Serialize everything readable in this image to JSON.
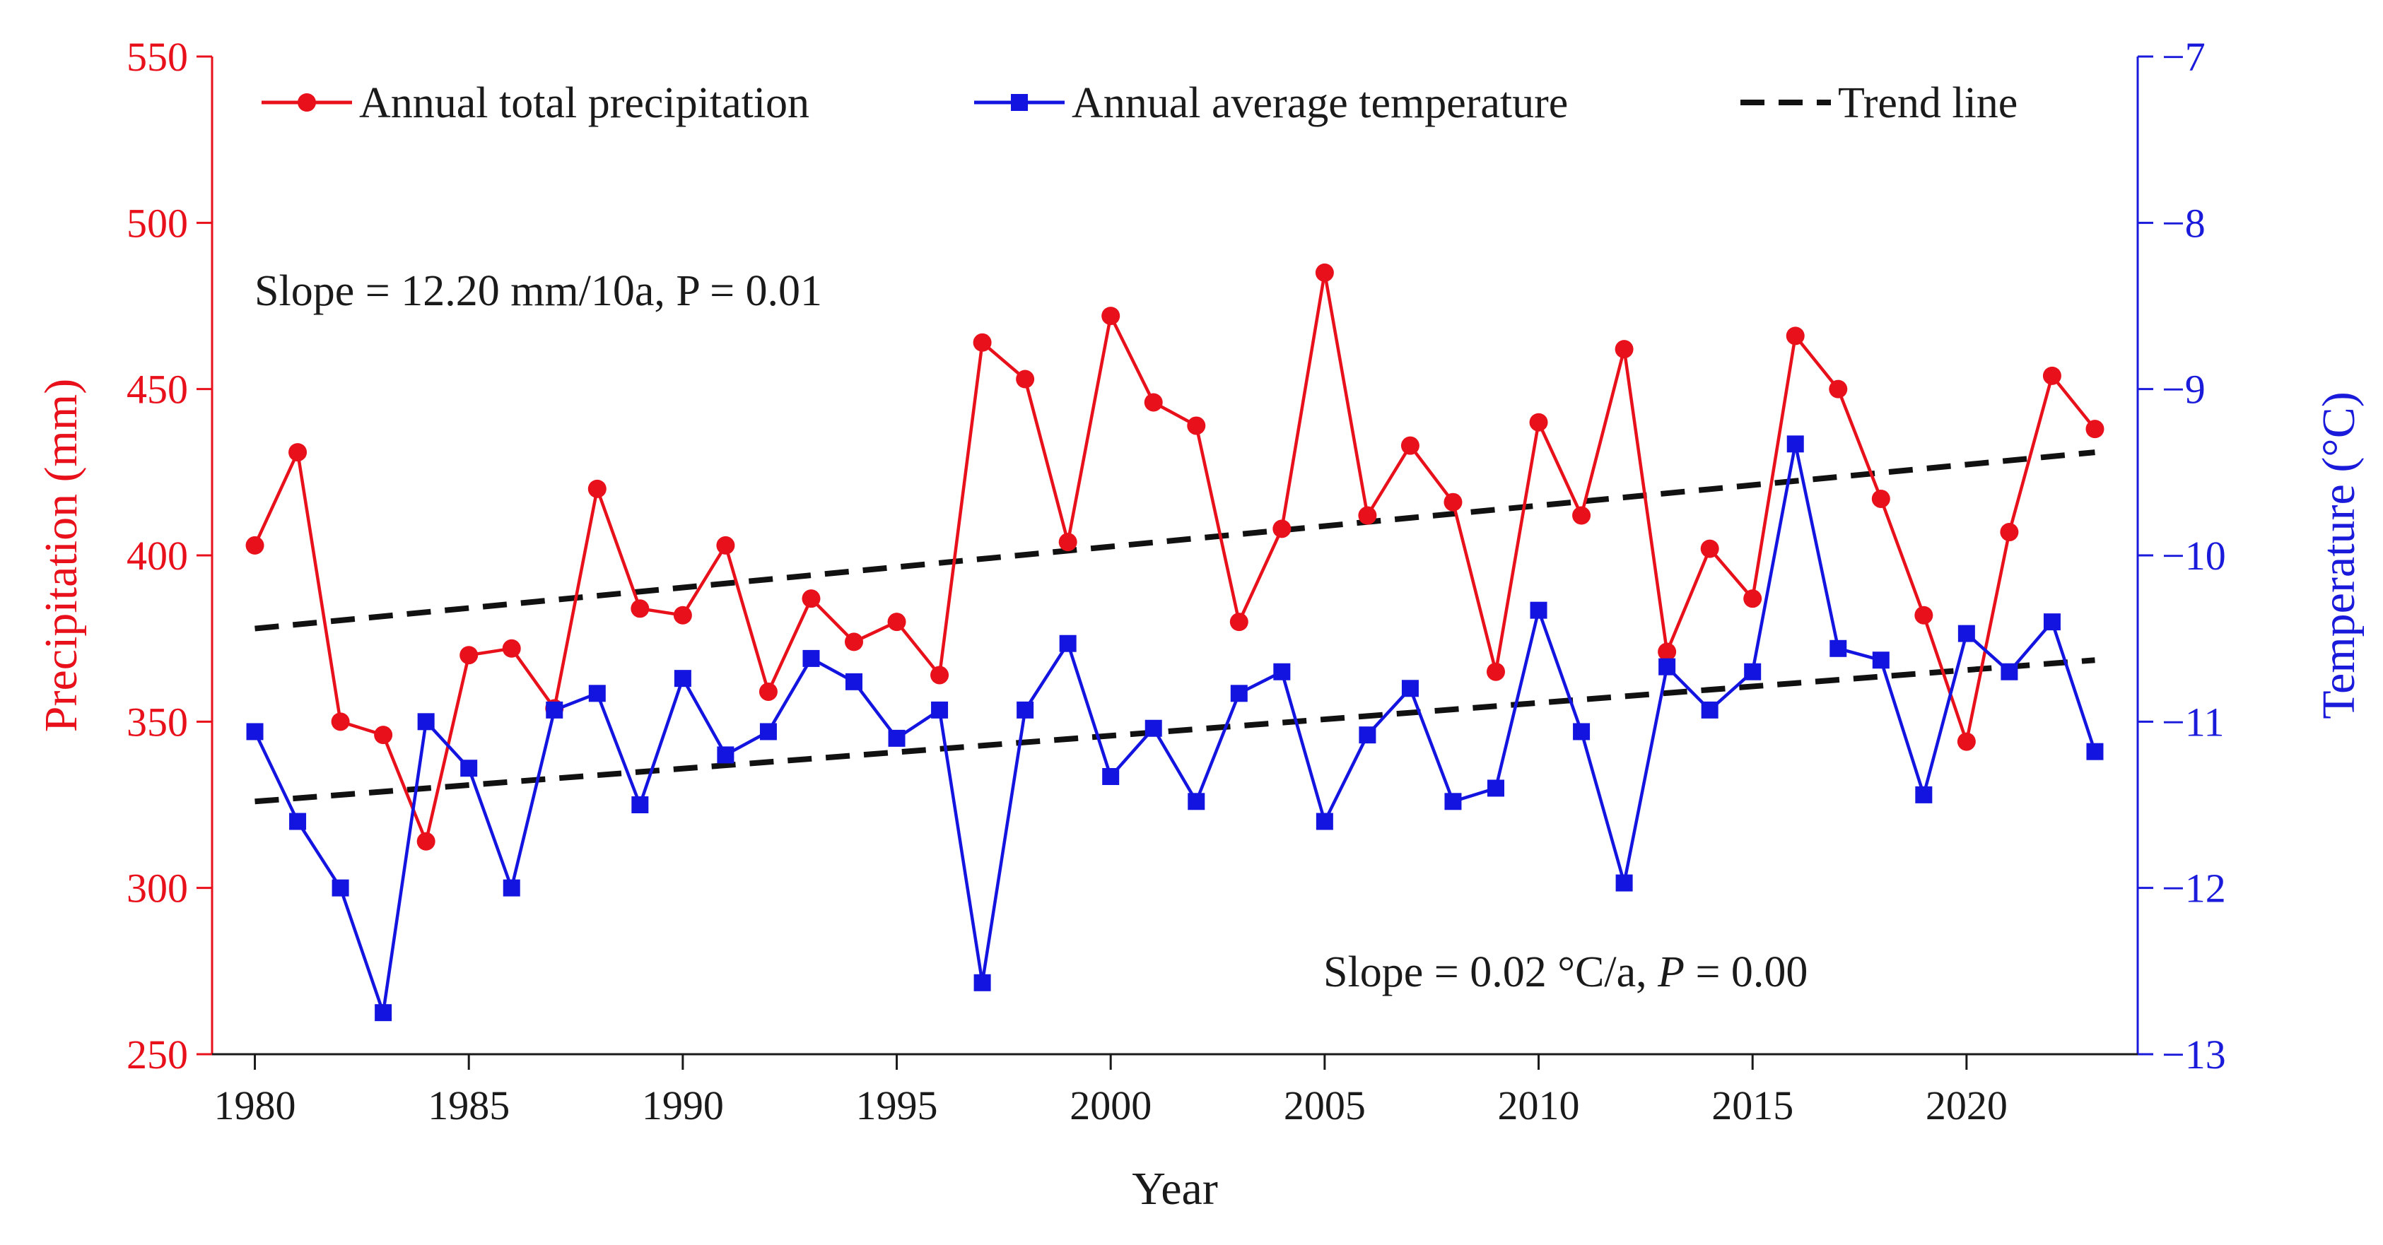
{
  "chart_data": {
    "type": "line",
    "x": [
      1980,
      1981,
      1982,
      1983,
      1984,
      1985,
      1986,
      1987,
      1988,
      1989,
      1990,
      1991,
      1992,
      1993,
      1994,
      1995,
      1996,
      1997,
      1998,
      1999,
      2000,
      2001,
      2002,
      2003,
      2004,
      2005,
      2006,
      2007,
      2008,
      2009,
      2010,
      2011,
      2012,
      2013,
      2014,
      2015,
      2016,
      2017,
      2018,
      2019,
      2020,
      2021,
      2022,
      2023
    ],
    "xlabel": "Year",
    "xlim": [
      1979,
      2024
    ],
    "xticks": [
      1980,
      1985,
      1990,
      1995,
      2000,
      2005,
      2010,
      2015,
      2020
    ],
    "xtick_labels": [
      "1980",
      "1985",
      "1990",
      "1995",
      "2000",
      "2005",
      "2010",
      "2015",
      "2020"
    ],
    "y_left": {
      "label": "Precipitation (mm)",
      "lim": [
        250,
        550
      ],
      "ticks": [
        250,
        300,
        350,
        400,
        450,
        500,
        550
      ],
      "tick_labels": [
        "250",
        "300",
        "350",
        "400",
        "450",
        "500",
        "550"
      ],
      "color": "#e8101a"
    },
    "y_right": {
      "label": "Temperature (°C)",
      "lim": [
        -13,
        -7
      ],
      "ticks": [
        -13,
        -12,
        -11,
        -10,
        -9,
        -8,
        -7
      ],
      "tick_labels": [
        "−13",
        "−12",
        "−11",
        "−10",
        "−9",
        "−8",
        "−7"
      ],
      "color": "#1a1adb"
    },
    "series": [
      {
        "name": "Annual total precipitation",
        "axis": "left",
        "color": "#e8101a",
        "marker": "circle",
        "values": [
          403,
          431,
          350,
          346,
          314,
          370,
          372,
          354,
          420,
          384,
          382,
          403,
          359,
          387,
          374,
          380,
          364,
          464,
          453,
          404,
          472,
          446,
          439,
          380,
          408,
          485,
          412,
          433,
          416,
          365,
          440,
          412,
          462,
          371,
          402,
          387,
          466,
          450,
          417,
          382,
          344,
          407,
          454,
          438
        ]
      },
      {
        "name": "Annual average temperature",
        "axis": "right",
        "color": "#1414e0",
        "marker": "square",
        "values": [
          -11.06,
          -11.6,
          -12.0,
          -12.75,
          -11.0,
          -11.28,
          -12.0,
          -10.93,
          -10.83,
          -11.5,
          -10.74,
          -11.2,
          -11.06,
          -10.62,
          -10.76,
          -11.1,
          -10.93,
          -12.57,
          -10.93,
          -10.53,
          -11.33,
          -11.04,
          -11.48,
          -10.83,
          -10.7,
          -11.6,
          -11.08,
          -10.8,
          -11.48,
          -11.4,
          -10.33,
          -11.06,
          -11.97,
          -10.67,
          -10.93,
          -10.7,
          -9.33,
          -10.56,
          -10.63,
          -11.44,
          -10.47,
          -10.7,
          -10.4,
          -11.18
        ]
      }
    ],
    "trend_lines": [
      {
        "axis": "left",
        "x": [
          1980,
          2023
        ],
        "y": [
          378,
          431
        ]
      },
      {
        "axis": "right",
        "x": [
          1980,
          2023
        ],
        "y": [
          -11.48,
          -10.63
        ]
      }
    ],
    "legend": {
      "position": "top",
      "items": [
        "Annual total precipitation",
        "Annual average temperature",
        "Trend line"
      ]
    },
    "annotations": [
      {
        "id": "precip-slope",
        "text": "Slope = 12.20 mm/10a, P = 0.01"
      },
      {
        "id": "temp-slope",
        "prefix": "Slope = 0.02 °C/a, ",
        "italic": "P",
        "suffix": " = 0.00"
      }
    ]
  }
}
